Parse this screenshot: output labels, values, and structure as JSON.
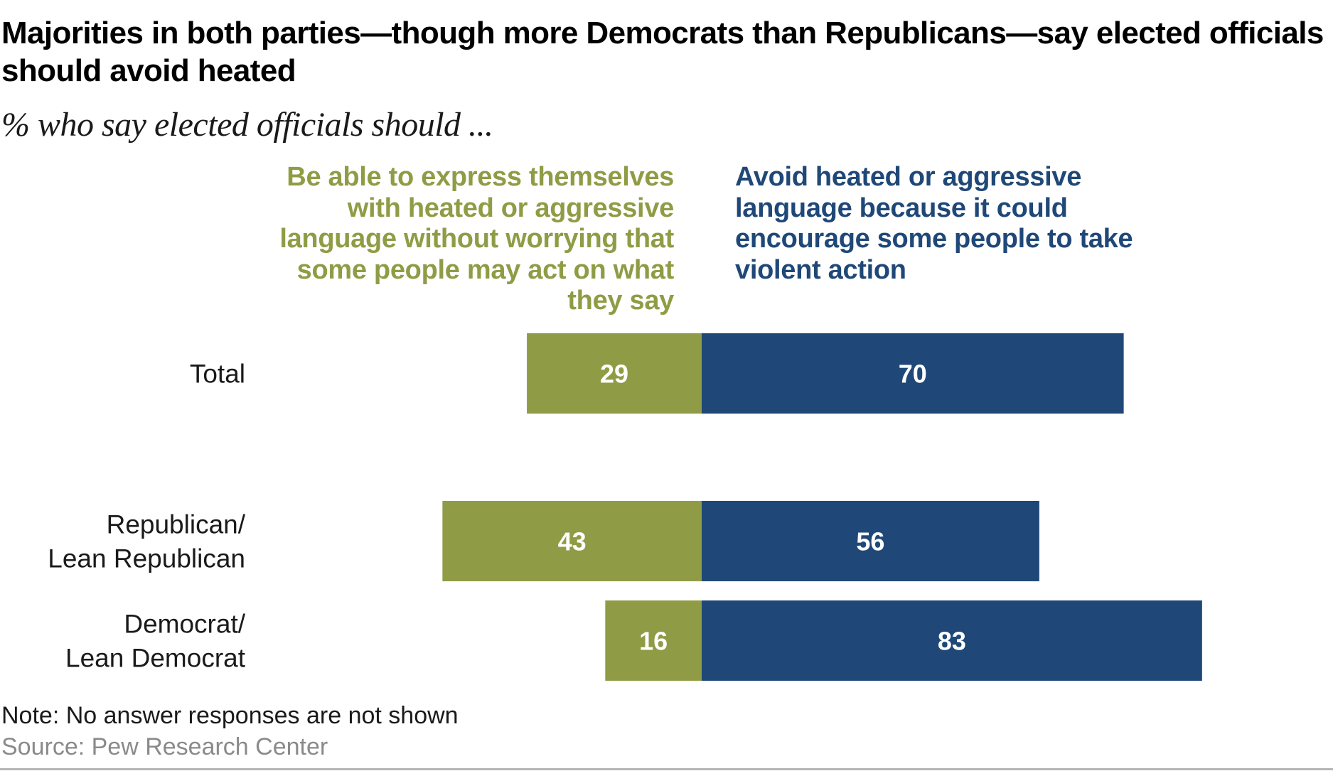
{
  "header": {
    "title": "Majorities in both parties—though more Democrats than Republicans—say elected officials should avoid heated",
    "subtitle": "% who say elected officials should ..."
  },
  "footer": {
    "note": "Note: No answer responses are not shown",
    "source": "Source: Pew Research Center"
  },
  "colors": {
    "express": "#909c45",
    "avoid": "#1f4878"
  },
  "chart_data": {
    "type": "bar",
    "orientation": "horizontal-diverging",
    "categories": [
      [
        "Total"
      ],
      [
        "Republican/",
        "Lean Republican"
      ],
      [
        "Democrat/",
        "Lean Democrat"
      ]
    ],
    "series": [
      {
        "name": "Be able to express themselves with heated or aggressive language without worrying that some people may act on what they say",
        "values": [
          29,
          43,
          16
        ],
        "color": "#909c45",
        "side": "left"
      },
      {
        "name": "Avoid heated or aggressive language because it could encourage some people to take violent action",
        "values": [
          70,
          56,
          83
        ],
        "color": "#1f4878",
        "side": "right"
      }
    ],
    "data_labels": true,
    "grid": false,
    "legend_placement": "top"
  }
}
